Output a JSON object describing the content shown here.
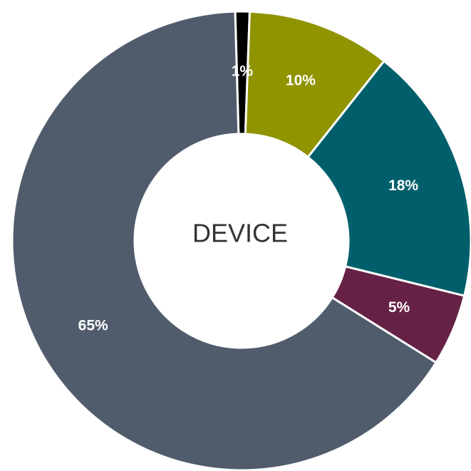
{
  "chart_data": {
    "type": "pie",
    "subtype": "donut",
    "center_label": "DEVICE",
    "slices": [
      {
        "value": 1,
        "label": "1%",
        "color": "#000000"
      },
      {
        "value": 10,
        "label": "10%",
        "color": "#8f9400"
      },
      {
        "value": 18,
        "label": "18%",
        "color": "#005f6b"
      },
      {
        "value": 5,
        "label": "5%",
        "color": "#662146"
      },
      {
        "value": 65,
        "label": "65%",
        "color": "#505c6c"
      }
    ],
    "legend": "none"
  }
}
